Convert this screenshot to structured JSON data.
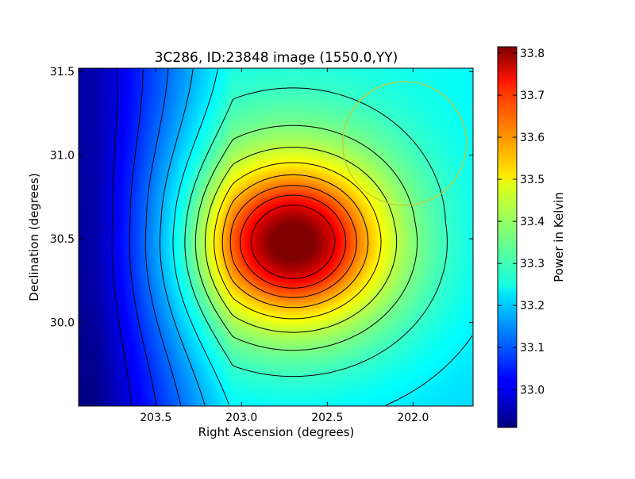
{
  "chart_data": {
    "type": "heatmap",
    "title": "3C286, ID:23848 image (1550.0,YY)",
    "xlabel": "Right Ascension (degrees)",
    "ylabel": "Declination (degrees)",
    "xlim": [
      203.95,
      201.65
    ],
    "ylim": [
      29.5,
      31.52
    ],
    "x_ticks": [
      203.5,
      203.0,
      202.5,
      202.0
    ],
    "x_tick_labels": [
      "203.5",
      "203.0",
      "202.5",
      "202.0"
    ],
    "y_ticks": [
      30.0,
      30.5,
      31.0,
      31.5
    ],
    "y_tick_labels": [
      "30.0",
      "30.5",
      "31.0",
      "31.5"
    ],
    "colormap": "jet",
    "colorbar": {
      "label": "Power in Kelvin",
      "range": [
        32.91,
        33.815
      ],
      "ticks": [
        33.0,
        33.1,
        33.2,
        33.3,
        33.4,
        33.5,
        33.6,
        33.7,
        33.8
      ],
      "tick_labels": [
        "33.0",
        "33.1",
        "33.2",
        "33.3",
        "33.4",
        "33.5",
        "33.6",
        "33.7",
        "33.8"
      ]
    },
    "peak": {
      "ra": 202.7,
      "dec": 30.48,
      "value": 33.815
    },
    "circle": {
      "ra": 202.05,
      "dec": 31.07,
      "radius_dec": 0.37,
      "color": "#c8c832"
    },
    "contour_color": "#000000",
    "grid": false
  }
}
